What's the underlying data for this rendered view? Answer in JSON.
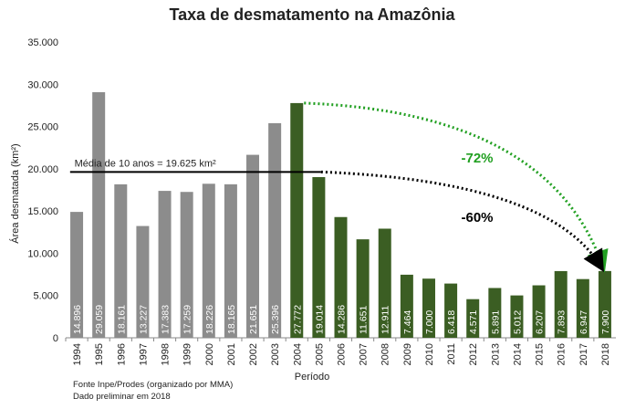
{
  "chart_data": {
    "type": "bar",
    "title": "Taxa de desmatamento na Amazônia",
    "x_label": "Período",
    "y_label": "Área desmatada (km²)",
    "categories": [
      "1994",
      "1995",
      "1996",
      "1997",
      "1998",
      "1999",
      "2000",
      "2001",
      "2002",
      "2003",
      "2004",
      "2005",
      "2006",
      "2007",
      "2008",
      "2009",
      "2010",
      "2011",
      "2012",
      "2013",
      "2014",
      "2015",
      "2016",
      "2017",
      "2018"
    ],
    "values": [
      14896,
      29059,
      18161,
      13227,
      17383,
      17259,
      18226,
      18165,
      21651,
      25396,
      27772,
      19014,
      14286,
      11651,
      12911,
      7464,
      7000,
      6418,
      4571,
      5891,
      5012,
      6207,
      7893,
      6947,
      7900
    ],
    "value_labels": [
      "14.896",
      "29.059",
      "18.161",
      "13.227",
      "17.383",
      "17.259",
      "18.226",
      "18.165",
      "21.651",
      "25.396",
      "27.772",
      "19.014",
      "14.286",
      "11.651",
      "12.911",
      "7.464",
      "7.000",
      "6.418",
      "4.571",
      "5.891",
      "5.012",
      "6.207",
      "7.893",
      "6.947",
      "7.900"
    ],
    "colors": [
      "#8c8c8c",
      "#8c8c8c",
      "#8c8c8c",
      "#8c8c8c",
      "#8c8c8c",
      "#8c8c8c",
      "#8c8c8c",
      "#8c8c8c",
      "#8c8c8c",
      "#8c8c8c",
      "#3b5e23",
      "#3b5e23",
      "#3b5e23",
      "#3b5e23",
      "#3b5e23",
      "#3b5e23",
      "#3b5e23",
      "#3b5e23",
      "#3b5e23",
      "#3b5e23",
      "#3b5e23",
      "#3b5e23",
      "#3b5e23",
      "#3b5e23",
      "#3b5e23"
    ],
    "ylim": [
      0,
      35000
    ],
    "yticks": [
      0,
      {
        "value": 5000,
        "label": "5.000"
      },
      {
        "value": 10000,
        "label": "10.000"
      },
      {
        "value": 15000,
        "label": "15.000"
      },
      {
        "value": 20000,
        "label": "20.000"
      },
      {
        "value": 25000,
        "label": "25.000"
      },
      {
        "value": 30000,
        "label": "30.000"
      },
      {
        "value": 35000,
        "label": "35.000"
      }
    ],
    "grid": false,
    "average": {
      "value": 19625,
      "label": "Média de 10 anos = 19.625 km²"
    },
    "annotations": [
      {
        "text": "-72%",
        "color": "#22a022"
      },
      {
        "text": "-60%",
        "color": "#000000"
      }
    ],
    "notes": [
      "Fonte Inpe/Prodes (organizado por MMA)",
      "Dado preliminar em 2018"
    ]
  }
}
